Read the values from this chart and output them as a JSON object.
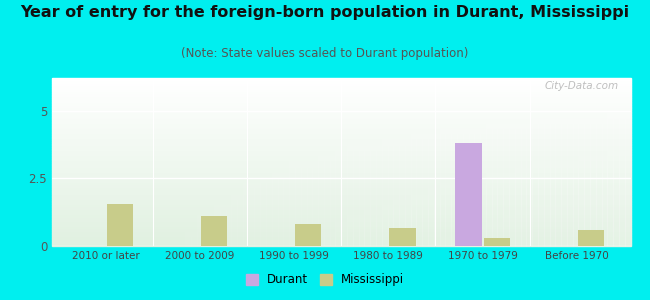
{
  "title": "Year of entry for the foreign-born population in Durant, Mississippi",
  "subtitle": "(Note: State values scaled to Durant population)",
  "categories": [
    "2010 or later",
    "2000 to 2009",
    "1990 to 1999",
    "1980 to 1989",
    "1970 to 1979",
    "Before 1970"
  ],
  "durant_values": [
    0,
    0,
    0,
    0,
    3.8,
    0
  ],
  "mississippi_values": [
    1.55,
    1.1,
    0.82,
    0.65,
    0.3,
    0.58
  ],
  "durant_color": "#c9a8e0",
  "mississippi_color": "#c8cc8a",
  "ylim": [
    0,
    6.2
  ],
  "yticks": [
    0,
    2.5,
    5
  ],
  "background_color": "#00efef",
  "bar_width": 0.28,
  "title_fontsize": 11.5,
  "subtitle_fontsize": 8.5,
  "watermark": "City-Data.com"
}
